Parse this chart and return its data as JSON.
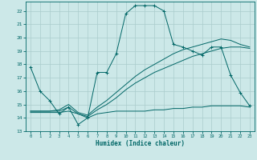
{
  "bg_color": "#cce8e8",
  "grid_color": "#aacccc",
  "line_color": "#006666",
  "xlabel": "Humidex (Indice chaleur)",
  "xlim": [
    -0.5,
    23.5
  ],
  "ylim": [
    13,
    22.7
  ],
  "yticks": [
    13,
    14,
    15,
    16,
    17,
    18,
    19,
    20,
    21,
    22
  ],
  "xticks": [
    0,
    1,
    2,
    3,
    4,
    5,
    6,
    7,
    8,
    9,
    10,
    11,
    12,
    13,
    14,
    15,
    16,
    17,
    18,
    19,
    20,
    21,
    22,
    23
  ],
  "line1_x": [
    0,
    1,
    2,
    3,
    4,
    5,
    6,
    7,
    8,
    9,
    10,
    11,
    12,
    13,
    14,
    15,
    16,
    17,
    18,
    19,
    20,
    21,
    22,
    23
  ],
  "line1_y": [
    17.8,
    16.0,
    15.3,
    14.3,
    14.8,
    13.5,
    14.0,
    17.4,
    17.4,
    18.8,
    21.8,
    22.4,
    22.4,
    22.4,
    22.0,
    19.5,
    19.3,
    19.0,
    18.7,
    19.3,
    19.3,
    17.2,
    15.9,
    14.9
  ],
  "line2_x": [
    0,
    1,
    2,
    3,
    4,
    5,
    6,
    7,
    8,
    9,
    10,
    11,
    12,
    13,
    14,
    15,
    16,
    17,
    18,
    19,
    20,
    21,
    22,
    23
  ],
  "line2_y": [
    14.4,
    14.4,
    14.4,
    14.4,
    14.5,
    14.3,
    14.0,
    14.3,
    14.4,
    14.5,
    14.5,
    14.5,
    14.5,
    14.6,
    14.6,
    14.7,
    14.7,
    14.8,
    14.8,
    14.9,
    14.9,
    14.9,
    14.9,
    14.8
  ],
  "line3_x": [
    0,
    1,
    2,
    3,
    4,
    5,
    6,
    7,
    8,
    9,
    10,
    11,
    12,
    13,
    14,
    15,
    16,
    17,
    18,
    19,
    20,
    21,
    22,
    23
  ],
  "line3_y": [
    14.5,
    14.5,
    14.5,
    14.5,
    14.8,
    14.3,
    14.1,
    14.6,
    15.0,
    15.5,
    16.1,
    16.6,
    17.0,
    17.4,
    17.7,
    18.0,
    18.3,
    18.6,
    18.8,
    19.0,
    19.2,
    19.3,
    19.3,
    19.2
  ],
  "line4_x": [
    0,
    1,
    2,
    3,
    4,
    5,
    6,
    7,
    8,
    9,
    10,
    11,
    12,
    13,
    14,
    15,
    16,
    17,
    18,
    19,
    20,
    21,
    22,
    23
  ],
  "line4_y": [
    14.5,
    14.5,
    14.5,
    14.6,
    15.0,
    14.4,
    14.2,
    14.8,
    15.3,
    15.9,
    16.5,
    17.1,
    17.6,
    18.0,
    18.4,
    18.8,
    19.1,
    19.3,
    19.5,
    19.7,
    19.9,
    19.8,
    19.5,
    19.3
  ]
}
